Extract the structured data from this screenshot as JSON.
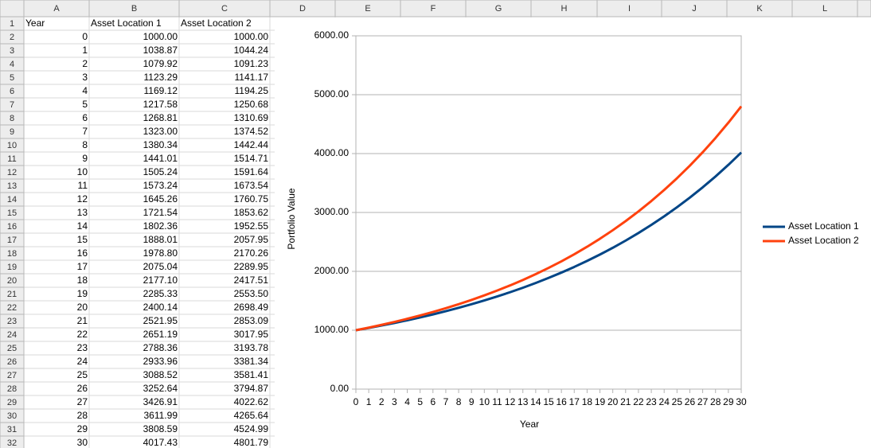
{
  "spreadsheet": {
    "column_letters": [
      "A",
      "B",
      "C",
      "D",
      "E",
      "F",
      "G",
      "H",
      "I",
      "J",
      "K",
      "L"
    ],
    "row_numbers": [
      1,
      2,
      3,
      4,
      5,
      6,
      7,
      8,
      9,
      10,
      11,
      12,
      13,
      14,
      15,
      16,
      17,
      18,
      19,
      20,
      21,
      22,
      23,
      24,
      25,
      26,
      27,
      28,
      29,
      30,
      31,
      32
    ],
    "header": [
      "Year",
      "Asset Location 1",
      "Asset Location 2"
    ],
    "rows": [
      [
        0,
        "1000.00",
        "1000.00"
      ],
      [
        1,
        "1038.87",
        "1044.24"
      ],
      [
        2,
        "1079.92",
        "1091.23"
      ],
      [
        3,
        "1123.29",
        "1141.17"
      ],
      [
        4,
        "1169.12",
        "1194.25"
      ],
      [
        5,
        "1217.58",
        "1250.68"
      ],
      [
        6,
        "1268.81",
        "1310.69"
      ],
      [
        7,
        "1323.00",
        "1374.52"
      ],
      [
        8,
        "1380.34",
        "1442.44"
      ],
      [
        9,
        "1441.01",
        "1514.71"
      ],
      [
        10,
        "1505.24",
        "1591.64"
      ],
      [
        11,
        "1573.24",
        "1673.54"
      ],
      [
        12,
        "1645.26",
        "1760.75"
      ],
      [
        13,
        "1721.54",
        "1853.62"
      ],
      [
        14,
        "1802.36",
        "1952.55"
      ],
      [
        15,
        "1888.01",
        "2057.95"
      ],
      [
        16,
        "1978.80",
        "2170.26"
      ],
      [
        17,
        "2075.04",
        "2289.95"
      ],
      [
        18,
        "2177.10",
        "2417.51"
      ],
      [
        19,
        "2285.33",
        "2553.50"
      ],
      [
        20,
        "2400.14",
        "2698.49"
      ],
      [
        21,
        "2521.95",
        "2853.09"
      ],
      [
        22,
        "2651.19",
        "3017.95"
      ],
      [
        23,
        "2788.36",
        "3193.78"
      ],
      [
        24,
        "2933.96",
        "3381.34"
      ],
      [
        25,
        "3088.52",
        "3581.41"
      ],
      [
        26,
        "3252.64",
        "3794.87"
      ],
      [
        27,
        "3426.91",
        "4022.62"
      ],
      [
        28,
        "3611.99",
        "4265.64"
      ],
      [
        29,
        "3808.59",
        "4524.99"
      ],
      [
        30,
        "4017.43",
        "4801.79"
      ]
    ]
  },
  "chart_data": {
    "type": "line",
    "x_label": "Year",
    "y_label": "Portfolio Value",
    "x": [
      0,
      1,
      2,
      3,
      4,
      5,
      6,
      7,
      8,
      9,
      10,
      11,
      12,
      13,
      14,
      15,
      16,
      17,
      18,
      19,
      20,
      21,
      22,
      23,
      24,
      25,
      26,
      27,
      28,
      29,
      30
    ],
    "xlim": [
      0,
      30
    ],
    "xticks": [
      0,
      1,
      2,
      3,
      4,
      5,
      6,
      7,
      8,
      9,
      10,
      11,
      12,
      13,
      14,
      15,
      16,
      17,
      18,
      19,
      20,
      21,
      22,
      23,
      24,
      25,
      26,
      27,
      28,
      29,
      30
    ],
    "ylim": [
      0,
      6000
    ],
    "yticks": [
      {
        "value": 0,
        "label": "0.00"
      },
      {
        "value": 1000,
        "label": "1000.00"
      },
      {
        "value": 2000,
        "label": "2000.00"
      },
      {
        "value": 3000,
        "label": "3000.00"
      },
      {
        "value": 4000,
        "label": "4000.00"
      },
      {
        "value": 5000,
        "label": "5000.00"
      },
      {
        "value": 6000,
        "label": "6000.00"
      }
    ],
    "grid": true,
    "legend": "right",
    "series": [
      {
        "name": "Asset Location 1",
        "color": "#004586",
        "values": [
          1000.0,
          1038.87,
          1079.92,
          1123.29,
          1169.12,
          1217.58,
          1268.81,
          1323.0,
          1380.34,
          1441.01,
          1505.24,
          1573.24,
          1645.26,
          1721.54,
          1802.36,
          1888.01,
          1978.8,
          2075.04,
          2177.1,
          2285.33,
          2400.14,
          2521.95,
          2651.19,
          2788.36,
          2933.96,
          3088.52,
          3252.64,
          3426.91,
          3611.99,
          3808.59,
          4017.43
        ]
      },
      {
        "name": "Asset Location 2",
        "color": "#ff420e",
        "values": [
          1000.0,
          1044.24,
          1091.23,
          1141.17,
          1194.25,
          1250.68,
          1310.69,
          1374.52,
          1442.44,
          1514.71,
          1591.64,
          1673.54,
          1760.75,
          1853.62,
          1952.55,
          2057.95,
          2170.26,
          2289.95,
          2417.51,
          2553.5,
          2698.49,
          2853.09,
          3017.95,
          3193.78,
          3381.34,
          3581.41,
          3794.87,
          4022.62,
          4265.64,
          4524.99,
          4801.79
        ]
      }
    ]
  }
}
